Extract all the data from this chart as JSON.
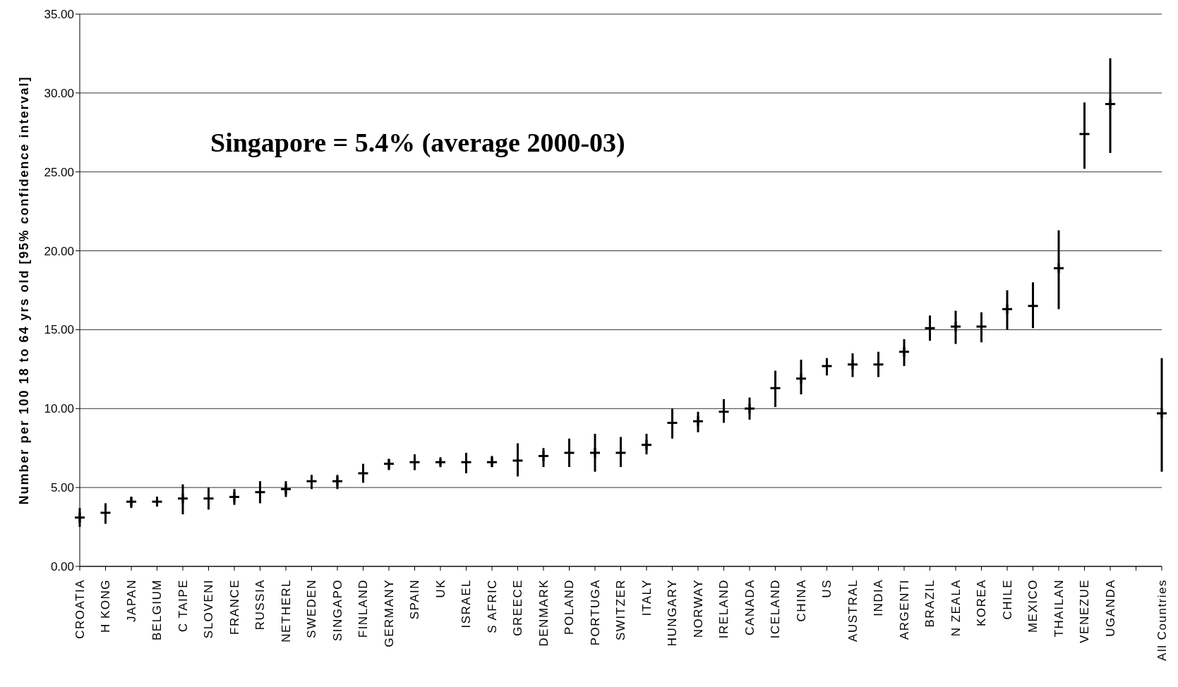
{
  "chart_data": {
    "type": "scatter",
    "ylabel": "Number per 100 18 to 64 yrs old [95% confidence interval]",
    "annotations": [
      "Singapore = 5.4% (average 2000-03)"
    ],
    "categories": [
      "CROATIA",
      "H KONG",
      "JAPAN",
      "BELGIUM",
      "C TAIPE",
      "SLOVENI",
      "FRANCE",
      "RUSSIA",
      "NETHERL",
      "SWEDEN",
      "SINGAPO",
      "FINLAND",
      "GERMANY",
      "SPAIN",
      "UK",
      "ISRAEL",
      "S AFRIC",
      "GREECE",
      "DENMARK",
      "POLAND",
      "PORTUGA",
      "SWITZER",
      "ITALY",
      "HUNGARY",
      "NORWAY",
      "IRELAND",
      "CANADA",
      "ICELAND",
      "CHINA",
      "US",
      "AUSTRAL",
      "INDIA",
      "ARGENTI",
      "BRAZIL",
      "N ZEALA",
      "KOREA",
      "CHILE",
      "MEXICO",
      "THAILAN",
      "VENEZUE",
      "UGANDA",
      null,
      "All Countries"
    ],
    "series": [
      {
        "color": "#000000",
        "values": [
          3.1,
          3.4,
          4.1,
          4.1,
          4.3,
          4.3,
          4.4,
          4.7,
          4.9,
          5.4,
          5.4,
          5.9,
          6.5,
          6.6,
          6.6,
          6.6,
          6.6,
          6.7,
          7.0,
          7.2,
          7.2,
          7.2,
          7.7,
          9.1,
          9.2,
          9.8,
          10.0,
          11.3,
          11.9,
          12.7,
          12.8,
          12.8,
          13.6,
          15.1,
          15.2,
          15.2,
          16.3,
          16.5,
          18.9,
          27.4,
          29.3,
          null,
          9.7
        ],
        "errors": [
          [
            2.5,
            3.7
          ],
          [
            2.7,
            4.0
          ],
          [
            3.7,
            4.4
          ],
          [
            3.8,
            4.4
          ],
          [
            3.3,
            5.2
          ],
          [
            3.6,
            5.0
          ],
          [
            3.9,
            4.9
          ],
          [
            4.0,
            5.4
          ],
          [
            4.4,
            5.4
          ],
          [
            4.9,
            5.8
          ],
          [
            4.9,
            5.8
          ],
          [
            5.3,
            6.5
          ],
          [
            6.1,
            6.8
          ],
          [
            6.1,
            7.1
          ],
          [
            6.4,
            6.8
          ],
          [
            5.9,
            7.2
          ],
          [
            6.3,
            7.0
          ],
          [
            5.7,
            7.8
          ],
          [
            6.3,
            7.5
          ],
          [
            6.3,
            8.1
          ],
          [
            6.0,
            8.4
          ],
          [
            6.3,
            8.2
          ],
          [
            7.1,
            8.4
          ],
          [
            8.1,
            10.0
          ],
          [
            8.5,
            9.8
          ],
          [
            9.1,
            10.6
          ],
          [
            9.3,
            10.7
          ],
          [
            10.1,
            12.4
          ],
          [
            10.9,
            13.1
          ],
          [
            12.1,
            13.2
          ],
          [
            12.0,
            13.5
          ],
          [
            12.0,
            13.6
          ],
          [
            12.7,
            14.4
          ],
          [
            14.3,
            15.9
          ],
          [
            14.1,
            16.2
          ],
          [
            14.2,
            16.1
          ],
          [
            15.0,
            17.5
          ],
          [
            15.1,
            18.0
          ],
          [
            16.3,
            21.3
          ],
          [
            25.2,
            29.4
          ],
          [
            26.2,
            32.2
          ],
          null,
          [
            6.0,
            13.2
          ]
        ]
      }
    ],
    "ylim": [
      0,
      35
    ],
    "yticks": [
      {
        "value": 0,
        "label": "0.00"
      },
      {
        "value": 5,
        "label": "5.00"
      },
      {
        "value": 10,
        "label": "10.00"
      },
      {
        "value": 15,
        "label": "15.00"
      },
      {
        "value": 20,
        "label": "20.00"
      },
      {
        "value": 25,
        "label": "25.00"
      },
      {
        "value": 30,
        "label": "30.00"
      },
      {
        "value": 35,
        "label": "35.00"
      }
    ],
    "grid": "y",
    "marker": "cross"
  }
}
